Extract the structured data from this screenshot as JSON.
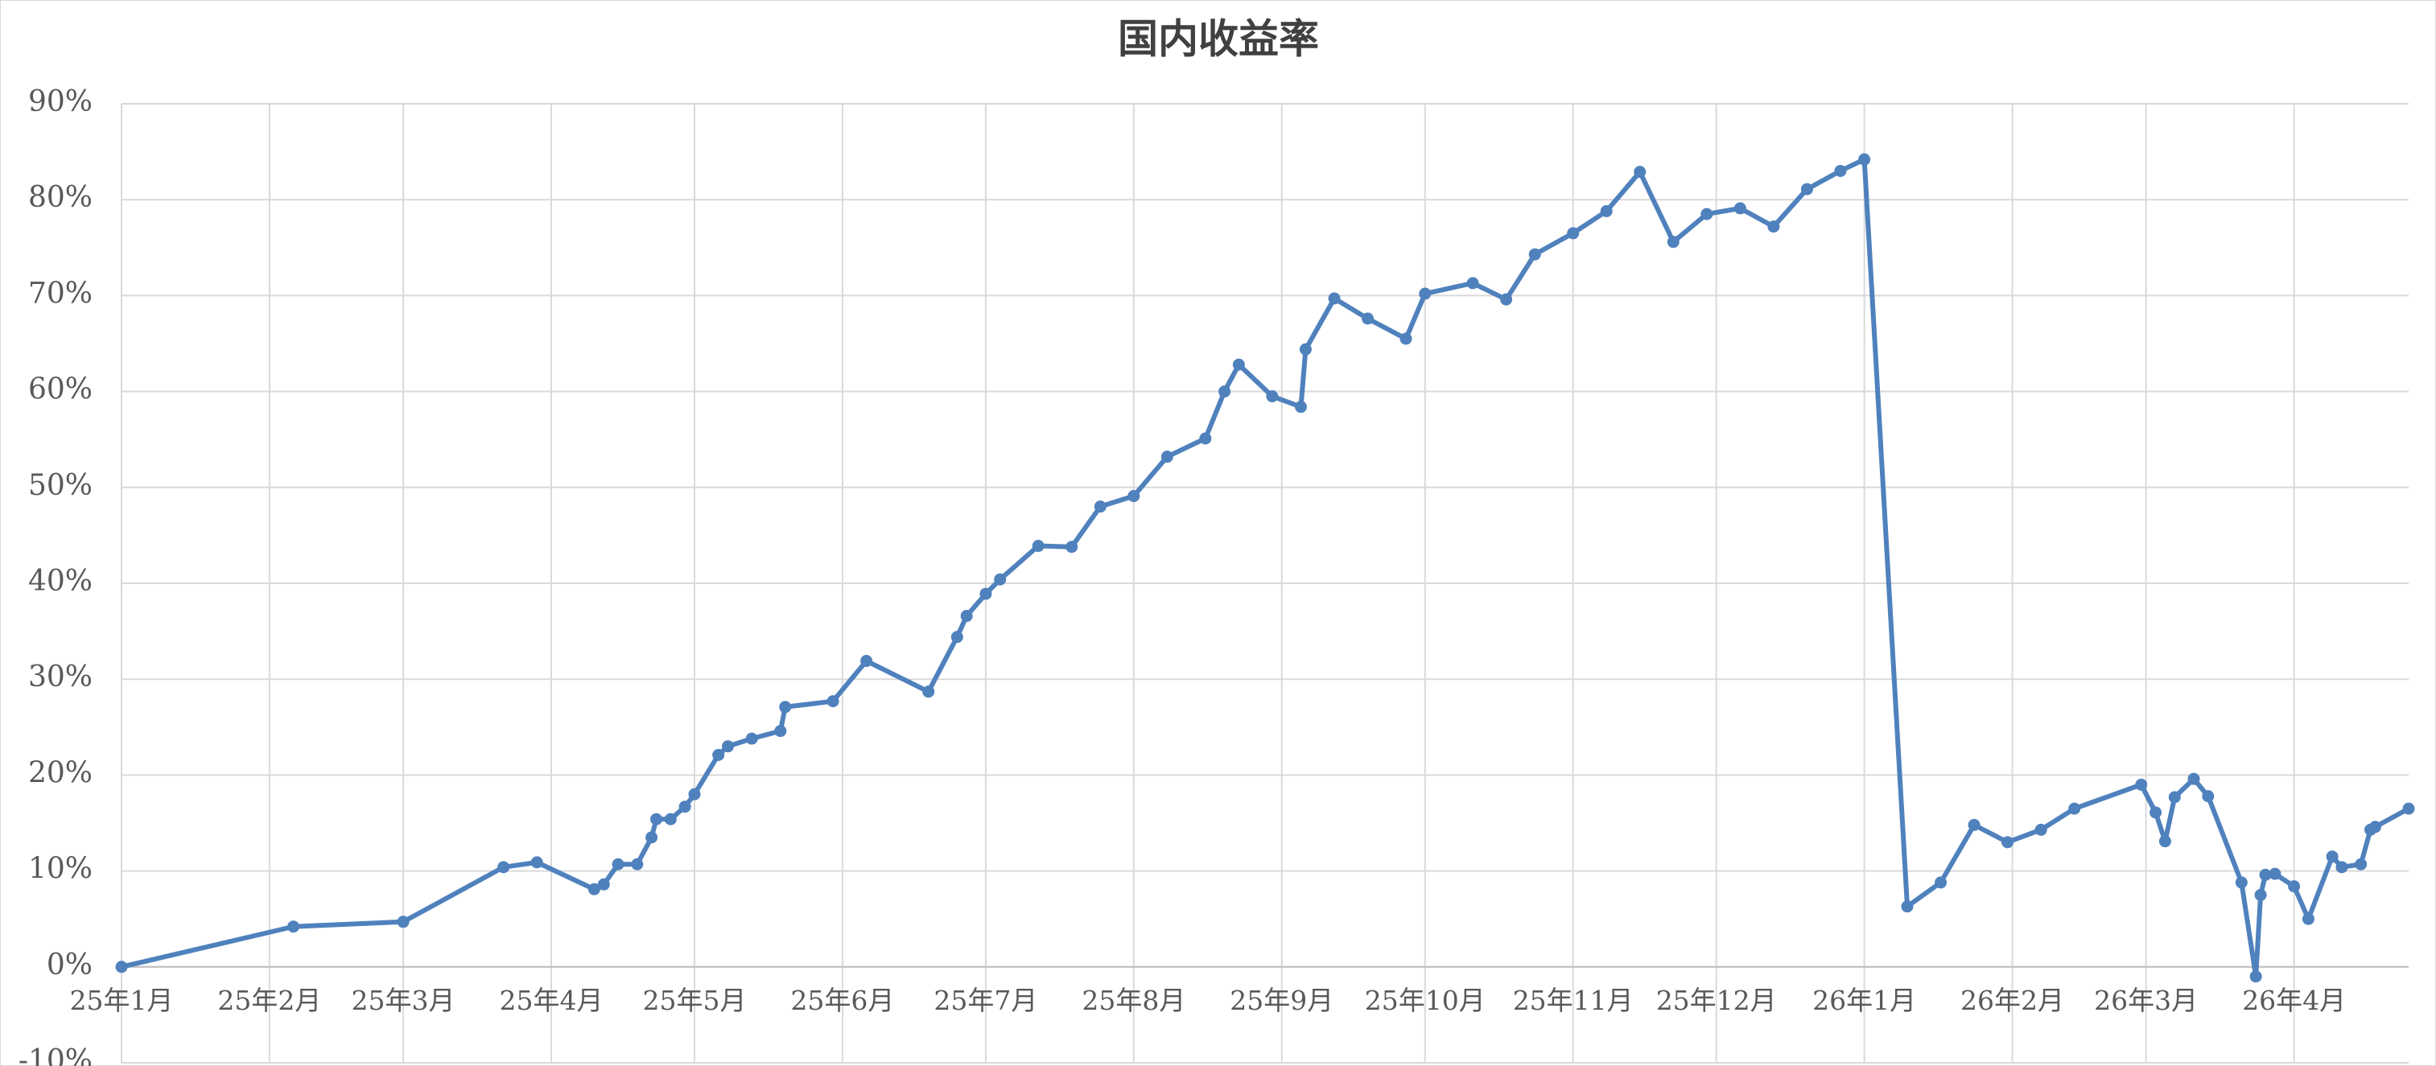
{
  "chart_data": {
    "type": "line",
    "title": "国内收益率",
    "x": [
      0,
      36,
      59,
      80,
      87,
      99,
      101,
      104,
      108,
      111,
      112,
      115,
      118,
      120,
      125,
      127,
      132,
      138,
      139,
      149,
      156,
      169,
      175,
      177,
      181,
      184,
      192,
      199,
      205,
      212,
      219,
      227,
      231,
      234,
      241,
      247,
      248,
      254,
      261,
      269,
      273,
      283,
      290,
      296,
      304,
      311,
      318,
      325,
      332,
      339,
      346,
      353,
      360,
      365,
      374,
      381,
      388,
      395,
      402,
      409,
      423,
      426,
      428,
      430,
      434,
      437,
      444,
      447,
      448,
      449,
      451,
      455,
      458,
      463,
      465,
      469,
      471,
      472,
      479
    ],
    "values": [
      0,
      4.2,
      4.7,
      10.4,
      10.9,
      8.1,
      8.6,
      10.7,
      10.7,
      13.5,
      15.4,
      15.4,
      16.7,
      18.0,
      22.1,
      23.0,
      23.8,
      24.6,
      27.1,
      27.7,
      31.9,
      28.7,
      34.4,
      36.6,
      38.9,
      40.4,
      43.9,
      43.8,
      48.0,
      49.1,
      53.2,
      55.1,
      60.0,
      62.8,
      59.5,
      58.4,
      64.4,
      69.7,
      67.6,
      65.5,
      70.2,
      71.3,
      69.6,
      74.3,
      76.5,
      78.8,
      82.9,
      75.6,
      78.5,
      79.1,
      77.2,
      81.1,
      83.0,
      84.2,
      6.3,
      8.8,
      14.8,
      13.0,
      14.3,
      16.5,
      19.0,
      16.1,
      13.1,
      17.7,
      19.6,
      17.8,
      8.8,
      -1.0,
      7.5,
      9.6,
      9.7,
      8.4,
      5.0,
      11.5,
      10.4,
      10.7,
      14.3,
      14.6,
      16.5
    ],
    "color": "#4f81bd",
    "xlim": [
      0,
      479
    ],
    "xticks": [
      {
        "value": 0,
        "label": "25年1月"
      },
      {
        "value": 31,
        "label": "25年2月"
      },
      {
        "value": 59,
        "label": "25年3月"
      },
      {
        "value": 90,
        "label": "25年4月"
      },
      {
        "value": 120,
        "label": "25年5月"
      },
      {
        "value": 151,
        "label": "25年6月"
      },
      {
        "value": 181,
        "label": "25年7月"
      },
      {
        "value": 212,
        "label": "25年8月"
      },
      {
        "value": 243,
        "label": "25年9月"
      },
      {
        "value": 273,
        "label": "25年10月"
      },
      {
        "value": 304,
        "label": "25年11月"
      },
      {
        "value": 334,
        "label": "25年12月"
      },
      {
        "value": 365,
        "label": "26年1月"
      },
      {
        "value": 396,
        "label": "26年2月"
      },
      {
        "value": 424,
        "label": "26年3月"
      },
      {
        "value": 455,
        "label": "26年4月"
      }
    ],
    "ylim": [
      -10,
      90
    ],
    "yticks": [
      {
        "value": -10,
        "label": "-10%"
      },
      {
        "value": 0,
        "label": "0%"
      },
      {
        "value": 10,
        "label": "10%"
      },
      {
        "value": 20,
        "label": "20%"
      },
      {
        "value": 30,
        "label": "30%"
      },
      {
        "value": 40,
        "label": "40%"
      },
      {
        "value": 50,
        "label": "50%"
      },
      {
        "value": 60,
        "label": "60%"
      },
      {
        "value": 70,
        "label": "70%"
      },
      {
        "value": 80,
        "label": "80%"
      },
      {
        "value": 90,
        "label": "90%"
      }
    ],
    "grid": true
  }
}
